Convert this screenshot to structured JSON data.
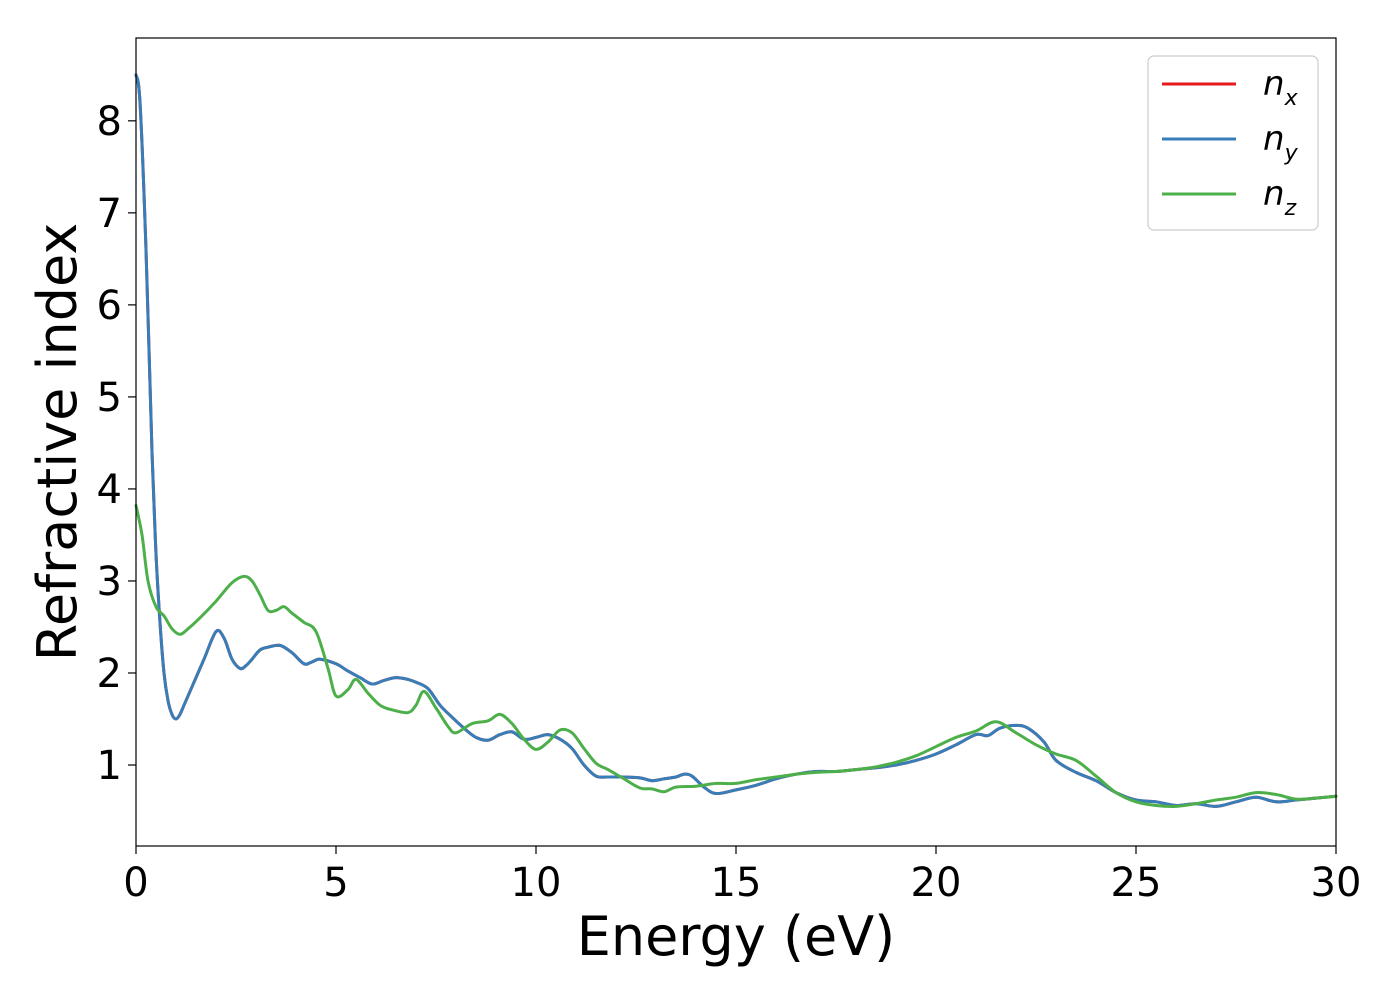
{
  "chart_data": {
    "type": "line",
    "title": "",
    "xlabel": "Energy (eV)",
    "ylabel": "Refractive index",
    "xlim": [
      0,
      30
    ],
    "ylim": [
      0.12,
      8.9
    ],
    "xticks": [
      0,
      5,
      10,
      15,
      20,
      25,
      30
    ],
    "yticks": [
      1,
      2,
      3,
      4,
      5,
      6,
      7,
      8
    ],
    "grid": false,
    "legend_position": "top-right",
    "series": [
      {
        "name": "n_x",
        "base": "n",
        "sub": "x",
        "color": "#e41a1c",
        "x": [
          0,
          0.1,
          0.25,
          0.4,
          0.5,
          0.6,
          0.7,
          0.8,
          0.9,
          1.0,
          1.1,
          1.2,
          1.4,
          1.7,
          2.0,
          2.2,
          2.4,
          2.6,
          2.75,
          2.9,
          3.1,
          3.3,
          3.6,
          3.9,
          4.2,
          4.4,
          4.6,
          5.0,
          5.3,
          5.6,
          5.9,
          6.2,
          6.5,
          6.8,
          7.0,
          7.3,
          7.6,
          7.9,
          8.2,
          8.5,
          8.8,
          9.1,
          9.4,
          9.7,
          10.0,
          10.3,
          10.6,
          10.9,
          11.2,
          11.5,
          11.8,
          12.2,
          12.6,
          12.9,
          13.2,
          13.5,
          13.7,
          13.9,
          14.2,
          14.5,
          15.0,
          15.5,
          16.0,
          16.5,
          17.0,
          17.5,
          18.0,
          18.5,
          19.0,
          19.5,
          20.0,
          20.5,
          21.0,
          21.3,
          21.6,
          22.0,
          22.3,
          22.7,
          23.0,
          23.5,
          24.0,
          24.5,
          25.0,
          25.5,
          26.0,
          26.5,
          27.0,
          27.5,
          28.0,
          28.5,
          29.0,
          29.5,
          30.0
        ],
        "y": [
          8.5,
          8.2,
          6.6,
          4.4,
          3.3,
          2.55,
          2.0,
          1.7,
          1.55,
          1.5,
          1.55,
          1.65,
          1.85,
          2.15,
          2.45,
          2.38,
          2.15,
          2.05,
          2.08,
          2.15,
          2.25,
          2.28,
          2.3,
          2.22,
          2.1,
          2.12,
          2.15,
          2.1,
          2.02,
          1.95,
          1.88,
          1.92,
          1.95,
          1.93,
          1.9,
          1.83,
          1.65,
          1.52,
          1.4,
          1.3,
          1.27,
          1.33,
          1.36,
          1.28,
          1.3,
          1.33,
          1.28,
          1.18,
          1.0,
          0.88,
          0.87,
          0.87,
          0.86,
          0.83,
          0.85,
          0.87,
          0.9,
          0.88,
          0.76,
          0.69,
          0.73,
          0.78,
          0.85,
          0.9,
          0.93,
          0.93,
          0.95,
          0.97,
          1.0,
          1.05,
          1.12,
          1.22,
          1.33,
          1.32,
          1.4,
          1.43,
          1.4,
          1.25,
          1.05,
          0.92,
          0.83,
          0.7,
          0.62,
          0.6,
          0.56,
          0.58,
          0.55,
          0.6,
          0.65,
          0.6,
          0.62,
          0.64,
          0.66
        ]
      },
      {
        "name": "n_y",
        "base": "n",
        "sub": "y",
        "color": "#377eb8",
        "x": [
          0,
          0.1,
          0.25,
          0.4,
          0.5,
          0.6,
          0.7,
          0.8,
          0.9,
          1.0,
          1.1,
          1.2,
          1.4,
          1.7,
          2.0,
          2.2,
          2.4,
          2.6,
          2.75,
          2.9,
          3.1,
          3.3,
          3.6,
          3.9,
          4.2,
          4.4,
          4.6,
          5.0,
          5.3,
          5.6,
          5.9,
          6.2,
          6.5,
          6.8,
          7.0,
          7.3,
          7.6,
          7.9,
          8.2,
          8.5,
          8.8,
          9.1,
          9.4,
          9.7,
          10.0,
          10.3,
          10.6,
          10.9,
          11.2,
          11.5,
          11.8,
          12.2,
          12.6,
          12.9,
          13.2,
          13.5,
          13.7,
          13.9,
          14.2,
          14.5,
          15.0,
          15.5,
          16.0,
          16.5,
          17.0,
          17.5,
          18.0,
          18.5,
          19.0,
          19.5,
          20.0,
          20.5,
          21.0,
          21.3,
          21.6,
          22.0,
          22.3,
          22.7,
          23.0,
          23.5,
          24.0,
          24.5,
          25.0,
          25.5,
          26.0,
          26.5,
          27.0,
          27.5,
          28.0,
          28.5,
          29.0,
          29.5,
          30.0
        ],
        "y": [
          8.5,
          8.2,
          6.6,
          4.4,
          3.3,
          2.55,
          2.0,
          1.7,
          1.55,
          1.5,
          1.55,
          1.65,
          1.85,
          2.15,
          2.45,
          2.38,
          2.15,
          2.05,
          2.08,
          2.15,
          2.25,
          2.28,
          2.3,
          2.22,
          2.1,
          2.12,
          2.15,
          2.1,
          2.02,
          1.95,
          1.88,
          1.92,
          1.95,
          1.93,
          1.9,
          1.83,
          1.65,
          1.52,
          1.4,
          1.3,
          1.27,
          1.33,
          1.36,
          1.28,
          1.3,
          1.33,
          1.28,
          1.18,
          1.0,
          0.88,
          0.87,
          0.87,
          0.86,
          0.83,
          0.85,
          0.87,
          0.9,
          0.88,
          0.76,
          0.69,
          0.73,
          0.78,
          0.85,
          0.9,
          0.93,
          0.93,
          0.95,
          0.97,
          1.0,
          1.05,
          1.12,
          1.22,
          1.33,
          1.32,
          1.4,
          1.43,
          1.4,
          1.25,
          1.05,
          0.92,
          0.83,
          0.7,
          0.62,
          0.6,
          0.56,
          0.58,
          0.55,
          0.6,
          0.65,
          0.6,
          0.62,
          0.64,
          0.66
        ]
      },
      {
        "name": "n_z",
        "base": "n",
        "sub": "z",
        "color": "#4daf4a",
        "x": [
          0,
          0.15,
          0.3,
          0.5,
          0.7,
          0.9,
          1.1,
          1.3,
          1.6,
          2.0,
          2.4,
          2.7,
          2.9,
          3.1,
          3.3,
          3.5,
          3.7,
          3.9,
          4.2,
          4.5,
          4.8,
          5.0,
          5.3,
          5.5,
          5.8,
          6.1,
          6.4,
          6.8,
          7.0,
          7.2,
          7.5,
          7.8,
          8.0,
          8.4,
          8.8,
          9.1,
          9.4,
          9.7,
          10.0,
          10.3,
          10.6,
          10.9,
          11.2,
          11.5,
          11.8,
          12.2,
          12.6,
          12.9,
          13.2,
          13.5,
          14.0,
          14.5,
          15.0,
          15.5,
          16.0,
          16.5,
          17.0,
          17.5,
          18.0,
          18.5,
          19.0,
          19.5,
          20.0,
          20.5,
          21.0,
          21.5,
          22.0,
          22.5,
          23.0,
          23.5,
          24.0,
          24.5,
          25.0,
          25.5,
          26.0,
          26.5,
          27.0,
          27.5,
          28.0,
          28.5,
          29.0,
          29.5,
          30.0
        ],
        "y": [
          3.82,
          3.5,
          3.0,
          2.72,
          2.62,
          2.48,
          2.42,
          2.48,
          2.6,
          2.78,
          2.98,
          3.05,
          3.0,
          2.85,
          2.68,
          2.68,
          2.72,
          2.65,
          2.55,
          2.45,
          2.05,
          1.75,
          1.82,
          1.93,
          1.78,
          1.65,
          1.6,
          1.57,
          1.65,
          1.8,
          1.62,
          1.42,
          1.35,
          1.45,
          1.48,
          1.55,
          1.45,
          1.28,
          1.17,
          1.25,
          1.38,
          1.35,
          1.18,
          1.02,
          0.95,
          0.85,
          0.75,
          0.74,
          0.71,
          0.76,
          0.77,
          0.8,
          0.8,
          0.84,
          0.87,
          0.9,
          0.92,
          0.93,
          0.95,
          0.98,
          1.03,
          1.1,
          1.2,
          1.3,
          1.37,
          1.47,
          1.35,
          1.22,
          1.12,
          1.05,
          0.88,
          0.7,
          0.6,
          0.56,
          0.55,
          0.58,
          0.62,
          0.65,
          0.7,
          0.68,
          0.63,
          0.64,
          0.66
        ]
      }
    ]
  }
}
